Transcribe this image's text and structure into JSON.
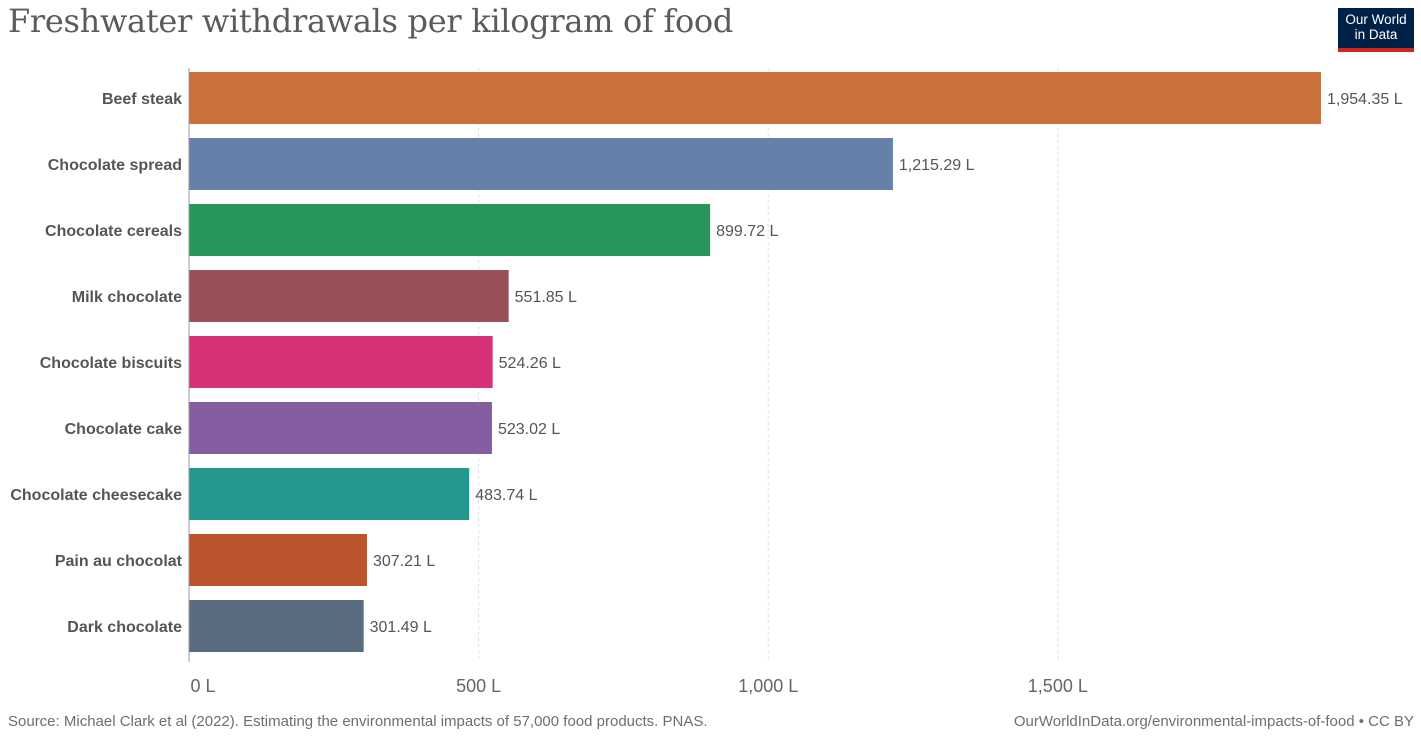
{
  "header": {
    "title": "Freshwater withdrawals per kilogram of food",
    "logo_line1": "Our World",
    "logo_line2": "in Data"
  },
  "footer": {
    "source": "Source: Michael Clark et al (2022). Estimating the environmental impacts of 57,000 food products. PNAS.",
    "url": "OurWorldInData.org/environmental-impacts-of-food • CC BY"
  },
  "chart_data": {
    "type": "bar",
    "orientation": "horizontal",
    "title": "Freshwater withdrawals per kilogram of food",
    "xlabel": "",
    "ylabel": "",
    "unit": "L",
    "xlim": [
      0,
      1954.35
    ],
    "x_ticks": [
      0,
      500,
      1000,
      1500
    ],
    "x_tick_labels": [
      "0 L",
      "500 L",
      "1,000 L",
      "1,500 L"
    ],
    "grid": "vertical dashed",
    "categories": [
      "Beef steak",
      "Chocolate spread",
      "Chocolate cereals",
      "Milk chocolate",
      "Chocolate biscuits",
      "Chocolate cake",
      "Chocolate cheesecake",
      "Pain au chocolat",
      "Dark chocolate"
    ],
    "values": [
      1954.35,
      1215.29,
      899.72,
      551.85,
      524.26,
      523.02,
      483.74,
      307.21,
      301.49
    ],
    "value_labels": [
      "1,954.35 L",
      "1,215.29 L",
      "899.72 L",
      "551.85 L",
      "524.26 L",
      "523.02 L",
      "483.74 L",
      "307.21 L",
      "301.49 L"
    ],
    "colors": [
      "#c9703b",
      "#6780aa",
      "#28965a",
      "#9a5058",
      "#d73178",
      "#845ea0",
      "#24978f",
      "#bc532d",
      "#5a6b80"
    ]
  }
}
